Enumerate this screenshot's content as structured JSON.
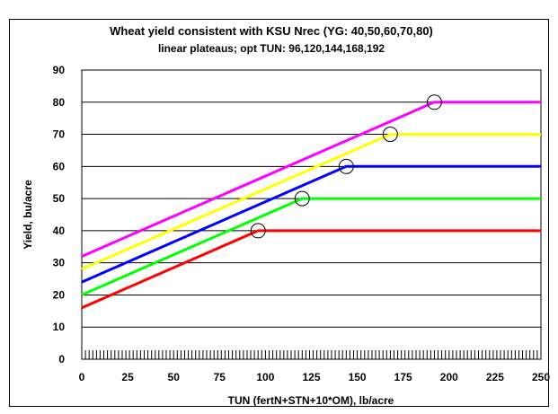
{
  "chart_data": {
    "type": "line",
    "title": "Wheat yield consistent with KSU Nrec (YG: 40,50,60,70,80)",
    "subtitle": "linear plateaus; opt TUN: 96,120,144,168,192",
    "xlabel": "TUN (fertN+STN+10*OM), lb/acre",
    "ylabel": "Yield, bu/acre",
    "xlim": [
      0,
      250
    ],
    "ylim": [
      0,
      90
    ],
    "xticks": [
      "0",
      "25",
      "50",
      "75",
      "100",
      "125",
      "150",
      "175",
      "200",
      "225",
      "250"
    ],
    "yticks": [
      "0",
      "10",
      "20",
      "30",
      "40",
      "50",
      "60",
      "70",
      "80",
      "90"
    ],
    "grid": "horizontal",
    "series": [
      {
        "color": "#ff0000",
        "points": [
          [
            0,
            16
          ],
          [
            96,
            40
          ],
          [
            250,
            40
          ]
        ],
        "marker": [
          96,
          40
        ]
      },
      {
        "color": "#00ff00",
        "points": [
          [
            0,
            20
          ],
          [
            120,
            50
          ],
          [
            250,
            50
          ]
        ],
        "marker": [
          120,
          50
        ]
      },
      {
        "color": "#0000ff",
        "points": [
          [
            0,
            24
          ],
          [
            144,
            60
          ],
          [
            250,
            60
          ]
        ],
        "marker": [
          144,
          60
        ]
      },
      {
        "color": "#ffff00",
        "points": [
          [
            0,
            28
          ],
          [
            168,
            70
          ],
          [
            250,
            70
          ]
        ],
        "marker": [
          168,
          70
        ]
      },
      {
        "color": "#ff00ff",
        "points": [
          [
            0,
            32
          ],
          [
            192,
            80
          ],
          [
            250,
            80
          ]
        ],
        "marker": [
          192,
          80
        ]
      }
    ]
  }
}
